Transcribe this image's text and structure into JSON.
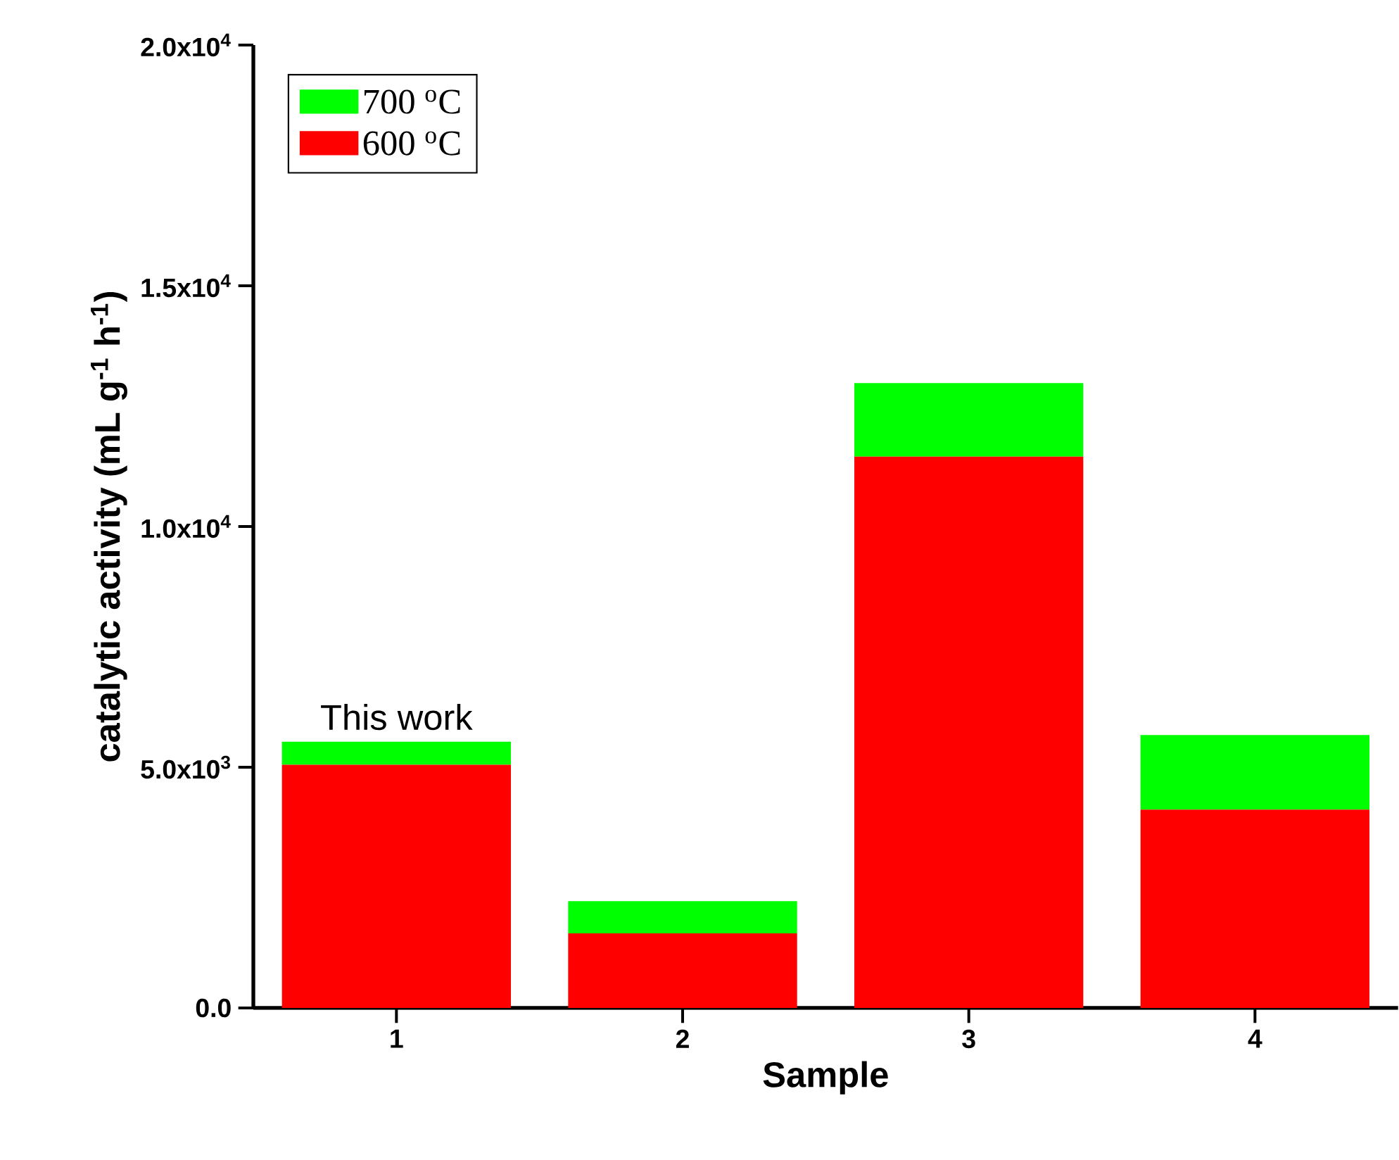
{
  "chart_data": {
    "type": "bar",
    "stacked": true,
    "xlabel": "Sample",
    "ylabel": "catalytic activity (mL g$^{-1}$ h$^{-1}$)",
    "categories": [
      "1",
      "2",
      "3",
      "4"
    ],
    "series": [
      {
        "name": "600 $^{o}$C",
        "color": "#ff0000",
        "values": [
          5050,
          1550,
          11450,
          4120
        ]
      },
      {
        "name": "700 $^{o}$C",
        "color": "#00ff00",
        "values": [
          480,
          670,
          1530,
          1550
        ]
      }
    ],
    "ylim": [
      0,
      20000
    ],
    "yticks": [
      {
        "value": 0,
        "label": "0.0"
      },
      {
        "value": 5000,
        "label": "5.0x10$^{3}$"
      },
      {
        "value": 10000,
        "label": "1.0x10$^{4}$"
      },
      {
        "value": 15000,
        "label": "1.5x10$^{4}$"
      },
      {
        "value": 20000,
        "label": "2.0x10$^{4}$"
      }
    ],
    "legend": "top left",
    "annotations": [
      {
        "text": "This work",
        "x": "1",
        "y": 5530
      }
    ]
  }
}
